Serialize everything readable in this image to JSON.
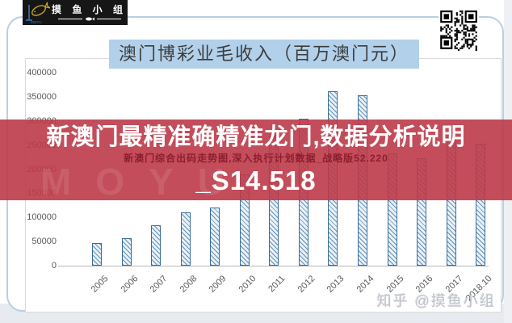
{
  "page": {
    "logo": {
      "brand_cn": "摸 鱼 小 组",
      "brand_en": "MOYU"
    },
    "title": "澳门博彩业毛收入（百万澳门元）",
    "overlay": {
      "line1": "新澳门最精准确精准龙门,数据分析说明",
      "subline": "新澳门综合出码走势图,深入执行计划数据_战略版52.220",
      "line2": "_S14.518",
      "bg_color": "rgba(188,58,72,0.90)"
    },
    "watermark": "知乎 @摸鱼小组",
    "icons": {
      "qr": "qr-code",
      "fish": "fish-logo"
    }
  },
  "chart_data": {
    "type": "bar",
    "title": "澳门博彩业毛收入（百万澳门元）",
    "categories": [
      "2005",
      "2006",
      "2007",
      "2008",
      "2009",
      "2010",
      "2011",
      "2012",
      "2013",
      "2014",
      "2015",
      "2016",
      "2017",
      "2018.10"
    ],
    "values": [
      47000,
      57500,
      84000,
      110000,
      120400,
      189600,
      269000,
      305200,
      362000,
      352700,
      231800,
      223200,
      266700,
      252000
    ],
    "xlabel": "",
    "ylabel": "",
    "ylim": [
      0,
      400000
    ],
    "ytick_step": 50000,
    "grid": false,
    "legend": null,
    "bar_fill": "#e8f1f8",
    "bar_hatch_color": "#4d81aa",
    "bar_border_color": "#3c6c99",
    "axis_label_color": "#595959"
  }
}
